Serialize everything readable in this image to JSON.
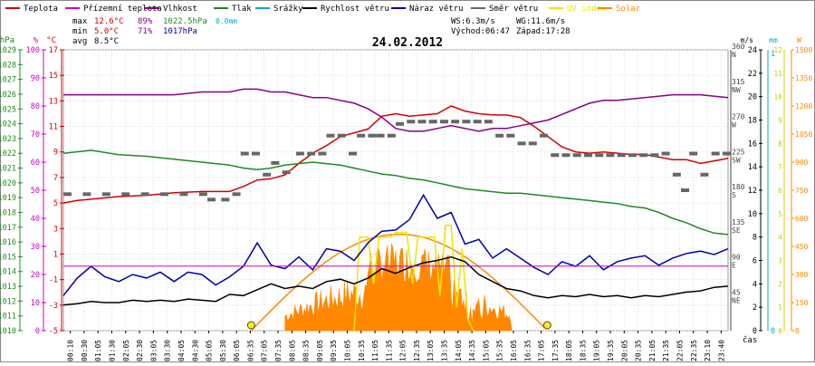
{
  "chart_data": {
    "type": "line",
    "title": "24.02.2012",
    "xlabel": "čas",
    "legend": [
      {
        "name": "Teplota",
        "color": "#d40000"
      },
      {
        "name": "Přízemní teplota",
        "color": "#cc00cc"
      },
      {
        "name": "Vlhkost",
        "color": "#880088"
      },
      {
        "name": "Tlak",
        "color": "#228822"
      },
      {
        "name": "Srážky",
        "color": "#00aacc"
      },
      {
        "name": "Rychlost větru",
        "color": "#000000"
      },
      {
        "name": "Náraz větru",
        "color": "#0000aa"
      },
      {
        "name": "Směr větru",
        "color": "#666666"
      },
      {
        "name": "UV index",
        "color": "#e8e800"
      },
      {
        "name": "Solar",
        "color": "#ff8800"
      }
    ],
    "stats": {
      "max_label": "max",
      "max_temp": "12.6°C",
      "max_hum": "89%",
      "max_press": "1022.5hPa",
      "precip": "0.0mm",
      "min_label": "min",
      "min_temp": "5.0°C",
      "min_hum": "71%",
      "min_press": "1017hPa",
      "avg_label": "avg",
      "avg_temp": "8.5°C",
      "ws": "WS:6.3m/s",
      "wg": "WG:11.6m/s",
      "sunrise": "Východ:06:47",
      "sunset": "Západ:17:28"
    },
    "axes": {
      "hpa": {
        "unit": "hPa",
        "color": "#228822",
        "range": [
          1010,
          1029
        ],
        "ticks": [
          1010,
          1011,
          1012,
          1013,
          1014,
          1015,
          1016,
          1017,
          1018,
          1019,
          1020,
          1021,
          1022,
          1023,
          1024,
          1025,
          1026,
          1027,
          1028,
          1029
        ]
      },
      "pct": {
        "unit": "%",
        "color": "#cc00cc",
        "range": [
          0,
          100
        ],
        "ticks": [
          0,
          10,
          20,
          30,
          40,
          50,
          60,
          70,
          80,
          90,
          100
        ]
      },
      "degc": {
        "unit": "°C",
        "color": "#d40000",
        "range": [
          -5,
          17
        ],
        "ticks": [
          -5,
          -3,
          -1,
          1,
          3,
          5,
          7,
          9,
          11,
          13,
          15,
          17
        ]
      },
      "ms": {
        "unit": "m/s",
        "color": "#000000",
        "range": [
          0,
          24
        ],
        "ticks": [
          0,
          2,
          4,
          6,
          8,
          10,
          12,
          14,
          16,
          18,
          20,
          22,
          24
        ]
      },
      "dir": {
        "range": [
          0,
          360
        ],
        "ticks": [
          {
            "deg": 45,
            "label": "NE"
          },
          {
            "deg": 90,
            "label": "E"
          },
          {
            "deg": 135,
            "label": "SE"
          },
          {
            "deg": 180,
            "label": "S"
          },
          {
            "deg": 225,
            "label": "SW"
          },
          {
            "deg": 270,
            "label": "W"
          },
          {
            "deg": 315,
            "label": "NW"
          },
          {
            "deg": 360,
            "label": "N"
          }
        ]
      },
      "mm": {
        "unit": "mm",
        "color": "#00aacc",
        "range": [
          0,
          1
        ],
        "ticks": [
          0,
          1
        ]
      },
      "uv": {
        "unit": "",
        "color": "#cccc00",
        "range": [
          0,
          12
        ],
        "ticks": [
          0,
          1,
          2,
          3,
          4,
          5,
          6,
          7,
          8,
          9,
          10,
          11,
          12
        ]
      },
      "w": {
        "unit": "W",
        "color": "#ff8800",
        "range": [
          0,
          1500
        ],
        "ticks": [
          0,
          150,
          300,
          450,
          600,
          750,
          900,
          1050,
          1200,
          1350,
          1500
        ]
      }
    },
    "x": {
      "range_hours": [
        0,
        24
      ],
      "tick_labels": [
        "00:10",
        "00:30",
        "01:05",
        "01:30",
        "02:05",
        "02:30",
        "03:05",
        "03:30",
        "04:05",
        "04:30",
        "05:05",
        "05:30",
        "06:05",
        "06:35",
        "07:05",
        "07:35",
        "08:05",
        "08:35",
        "09:05",
        "09:35",
        "10:05",
        "10:35",
        "11:05",
        "11:35",
        "12:05",
        "12:35",
        "13:05",
        "13:35",
        "14:05",
        "14:35",
        "15:05",
        "15:35",
        "16:05",
        "16:35",
        "17:05",
        "17:35",
        "18:05",
        "18:35",
        "19:05",
        "19:35",
        "20:05",
        "20:35",
        "21:05",
        "21:35",
        "22:05",
        "22:35",
        "23:10",
        "23:40"
      ]
    },
    "sun_markers_hours": [
      6.78,
      17.47
    ],
    "solar_peak_hour": 12.2,
    "series": [
      {
        "name": "Teplota",
        "axis": "degc",
        "color": "#d40000",
        "x": [
          0,
          0.5,
          1,
          2,
          3,
          4,
          5,
          6,
          6.5,
          7,
          7.5,
          8,
          8.5,
          9,
          9.5,
          10,
          10.5,
          11,
          11.5,
          12,
          12.5,
          13,
          13.5,
          14,
          14.5,
          15,
          15.5,
          16,
          16.5,
          17,
          17.5,
          18,
          18.5,
          19,
          19.5,
          20,
          20.5,
          21,
          21.5,
          22,
          22.5,
          23,
          23.5,
          24
        ],
        "values": [
          5,
          5.2,
          5.3,
          5.5,
          5.6,
          5.8,
          5.9,
          5.9,
          6.3,
          6.8,
          6.9,
          7.2,
          8.1,
          8.9,
          9.5,
          10.2,
          10.5,
          10.8,
          11.8,
          12.0,
          11.8,
          11.9,
          12.0,
          12.6,
          12.2,
          12.0,
          11.9,
          11.9,
          11.7,
          11.0,
          10.2,
          9.4,
          9.0,
          8.9,
          9.0,
          8.9,
          8.8,
          8.8,
          8.6,
          8.4,
          8.4,
          8.1,
          8.3,
          8.5
        ]
      },
      {
        "name": "Vlhkost",
        "axis": "pct",
        "color": "#880088",
        "x": [
          0,
          1,
          2,
          3,
          4,
          5,
          6,
          6.5,
          7,
          7.5,
          8,
          8.5,
          9,
          9.5,
          10,
          10.5,
          11,
          11.5,
          12,
          12.5,
          13,
          13.5,
          14,
          14.5,
          15,
          15.5,
          16,
          16.5,
          17,
          17.5,
          18,
          18.5,
          19,
          19.5,
          20,
          21,
          22,
          23,
          24
        ],
        "values": [
          84,
          84,
          84,
          84,
          84,
          85,
          85,
          86,
          86,
          85,
          85,
          84,
          83,
          83,
          82,
          81,
          79,
          76,
          72,
          71,
          71,
          72,
          73,
          72,
          71,
          72,
          72,
          73,
          74,
          75,
          77,
          79,
          81,
          82,
          82,
          83,
          84,
          84,
          83
        ]
      },
      {
        "name": "Tlak",
        "axis": "hpa",
        "color": "#228822",
        "x": [
          0,
          1,
          2,
          3,
          4,
          5,
          6,
          6.5,
          7,
          7.5,
          8,
          8.5,
          9,
          9.5,
          10,
          10.5,
          11,
          11.5,
          12,
          12.5,
          13,
          13.5,
          14,
          14.5,
          15,
          15.5,
          16,
          16.5,
          17,
          17.5,
          18,
          18.5,
          19,
          19.5,
          20,
          20.5,
          21,
          21.5,
          22,
          22.5,
          23,
          23.5,
          24
        ],
        "values": [
          1022.0,
          1022.2,
          1021.9,
          1021.8,
          1021.6,
          1021.4,
          1021.2,
          1021.0,
          1020.9,
          1021.0,
          1021.2,
          1021.3,
          1021.4,
          1021.3,
          1021.2,
          1021.0,
          1020.8,
          1020.6,
          1020.5,
          1020.3,
          1020.2,
          1020.0,
          1019.8,
          1019.6,
          1019.5,
          1019.4,
          1019.3,
          1019.3,
          1019.2,
          1019.1,
          1019.0,
          1018.9,
          1018.8,
          1018.7,
          1018.6,
          1018.4,
          1018.3,
          1018.0,
          1017.6,
          1017.3,
          1016.9,
          1016.6,
          1016.5
        ]
      },
      {
        "name": "Rychlost větru",
        "axis": "ms",
        "color": "#000000",
        "x": [
          0,
          0.5,
          1,
          1.5,
          2,
          2.5,
          3,
          3.5,
          4,
          4.5,
          5,
          5.5,
          6,
          6.5,
          7,
          7.5,
          8,
          8.5,
          9,
          9.5,
          10,
          10.5,
          11,
          11.5,
          12,
          12.5,
          13,
          13.5,
          14,
          14.5,
          15,
          15.5,
          16,
          16.5,
          17,
          17.5,
          18,
          18.5,
          19,
          19.5,
          20,
          20.5,
          21,
          21.5,
          22,
          22.5,
          23,
          23.5,
          24
        ],
        "values": [
          2.2,
          2.3,
          2.5,
          2.4,
          2.4,
          2.6,
          2.5,
          2.6,
          2.5,
          2.7,
          2.6,
          2.5,
          3.1,
          3.0,
          3.5,
          4.0,
          3.6,
          3.8,
          3.6,
          4.2,
          4.4,
          4.0,
          4.5,
          5.3,
          4.9,
          5.4,
          5.8,
          6.0,
          6.3,
          5.9,
          4.8,
          4.2,
          3.6,
          3.4,
          3.0,
          2.8,
          3.0,
          2.9,
          3.1,
          2.9,
          3.0,
          2.8,
          3.0,
          2.9,
          3.1,
          3.3,
          3.4,
          3.7,
          3.8
        ]
      },
      {
        "name": "Náraz větru",
        "axis": "ms",
        "color": "#0000aa",
        "x": [
          0,
          0.5,
          1,
          1.5,
          2,
          2.5,
          3,
          3.5,
          4,
          4.5,
          5,
          5.5,
          6,
          6.5,
          7,
          7.5,
          8,
          8.5,
          9,
          9.5,
          10,
          10.5,
          11,
          11.5,
          12,
          12.5,
          13,
          13.5,
          14,
          14.5,
          15,
          15.5,
          16,
          16.5,
          17,
          17.5,
          18,
          18.5,
          19,
          19.5,
          20,
          20.5,
          21,
          21.5,
          22,
          22.5,
          23,
          23.5,
          24
        ],
        "values": [
          3.0,
          4.5,
          5.5,
          4.6,
          4.2,
          4.8,
          4.5,
          5.0,
          4.2,
          5.0,
          4.8,
          3.9,
          4.6,
          5.5,
          7.5,
          5.6,
          5.3,
          6.3,
          5.2,
          7.0,
          6.8,
          6.0,
          7.5,
          8.5,
          8.6,
          9.5,
          11.6,
          9.6,
          10.1,
          7.4,
          7.8,
          6.2,
          7.0,
          6.2,
          5.4,
          4.8,
          5.9,
          5.5,
          6.4,
          5.2,
          5.9,
          6.2,
          6.4,
          5.6,
          6.2,
          6.6,
          6.8,
          6.5,
          7.0
        ]
      },
      {
        "name": "Přízemní teplota",
        "axis": "pct",
        "color": "#cc00cc",
        "x": [
          0,
          24
        ],
        "values": [
          23,
          23
        ]
      }
    ],
    "wind_direction_points": [
      {
        "h": 0.0,
        "deg": 175
      },
      {
        "h": 0.7,
        "deg": 175
      },
      {
        "h": 1.4,
        "deg": 175
      },
      {
        "h": 2.1,
        "deg": 175
      },
      {
        "h": 2.8,
        "deg": 175
      },
      {
        "h": 3.5,
        "deg": 175
      },
      {
        "h": 4.2,
        "deg": 175
      },
      {
        "h": 4.9,
        "deg": 175
      },
      {
        "h": 5.2,
        "deg": 168
      },
      {
        "h": 5.7,
        "deg": 168
      },
      {
        "h": 6.1,
        "deg": 175
      },
      {
        "h": 6.4,
        "deg": 227
      },
      {
        "h": 6.8,
        "deg": 227
      },
      {
        "h": 7.2,
        "deg": 200
      },
      {
        "h": 7.5,
        "deg": 215
      },
      {
        "h": 7.9,
        "deg": 203
      },
      {
        "h": 8.4,
        "deg": 227
      },
      {
        "h": 8.8,
        "deg": 227
      },
      {
        "h": 9.2,
        "deg": 227
      },
      {
        "h": 9.5,
        "deg": 250
      },
      {
        "h": 9.9,
        "deg": 250
      },
      {
        "h": 10.3,
        "deg": 227
      },
      {
        "h": 10.6,
        "deg": 250
      },
      {
        "h": 11.0,
        "deg": 250
      },
      {
        "h": 11.3,
        "deg": 250
      },
      {
        "h": 11.7,
        "deg": 250
      },
      {
        "h": 12.0,
        "deg": 265
      },
      {
        "h": 12.4,
        "deg": 268
      },
      {
        "h": 12.8,
        "deg": 268
      },
      {
        "h": 13.2,
        "deg": 268
      },
      {
        "h": 13.6,
        "deg": 268
      },
      {
        "h": 14.0,
        "deg": 268
      },
      {
        "h": 14.4,
        "deg": 268
      },
      {
        "h": 14.8,
        "deg": 268
      },
      {
        "h": 15.2,
        "deg": 268
      },
      {
        "h": 15.6,
        "deg": 250
      },
      {
        "h": 16.0,
        "deg": 250
      },
      {
        "h": 16.4,
        "deg": 240
      },
      {
        "h": 16.8,
        "deg": 240
      },
      {
        "h": 17.2,
        "deg": 250
      },
      {
        "h": 17.6,
        "deg": 225
      },
      {
        "h": 18.0,
        "deg": 225
      },
      {
        "h": 18.4,
        "deg": 225
      },
      {
        "h": 18.8,
        "deg": 225
      },
      {
        "h": 19.2,
        "deg": 225
      },
      {
        "h": 19.6,
        "deg": 225
      },
      {
        "h": 20.0,
        "deg": 225
      },
      {
        "h": 20.4,
        "deg": 225
      },
      {
        "h": 20.8,
        "deg": 225
      },
      {
        "h": 21.2,
        "deg": 225
      },
      {
        "h": 21.6,
        "deg": 227
      },
      {
        "h": 22.0,
        "deg": 200
      },
      {
        "h": 22.3,
        "deg": 180
      },
      {
        "h": 22.6,
        "deg": 227
      },
      {
        "h": 23.0,
        "deg": 200
      },
      {
        "h": 23.4,
        "deg": 227
      },
      {
        "h": 23.8,
        "deg": 227
      }
    ]
  }
}
